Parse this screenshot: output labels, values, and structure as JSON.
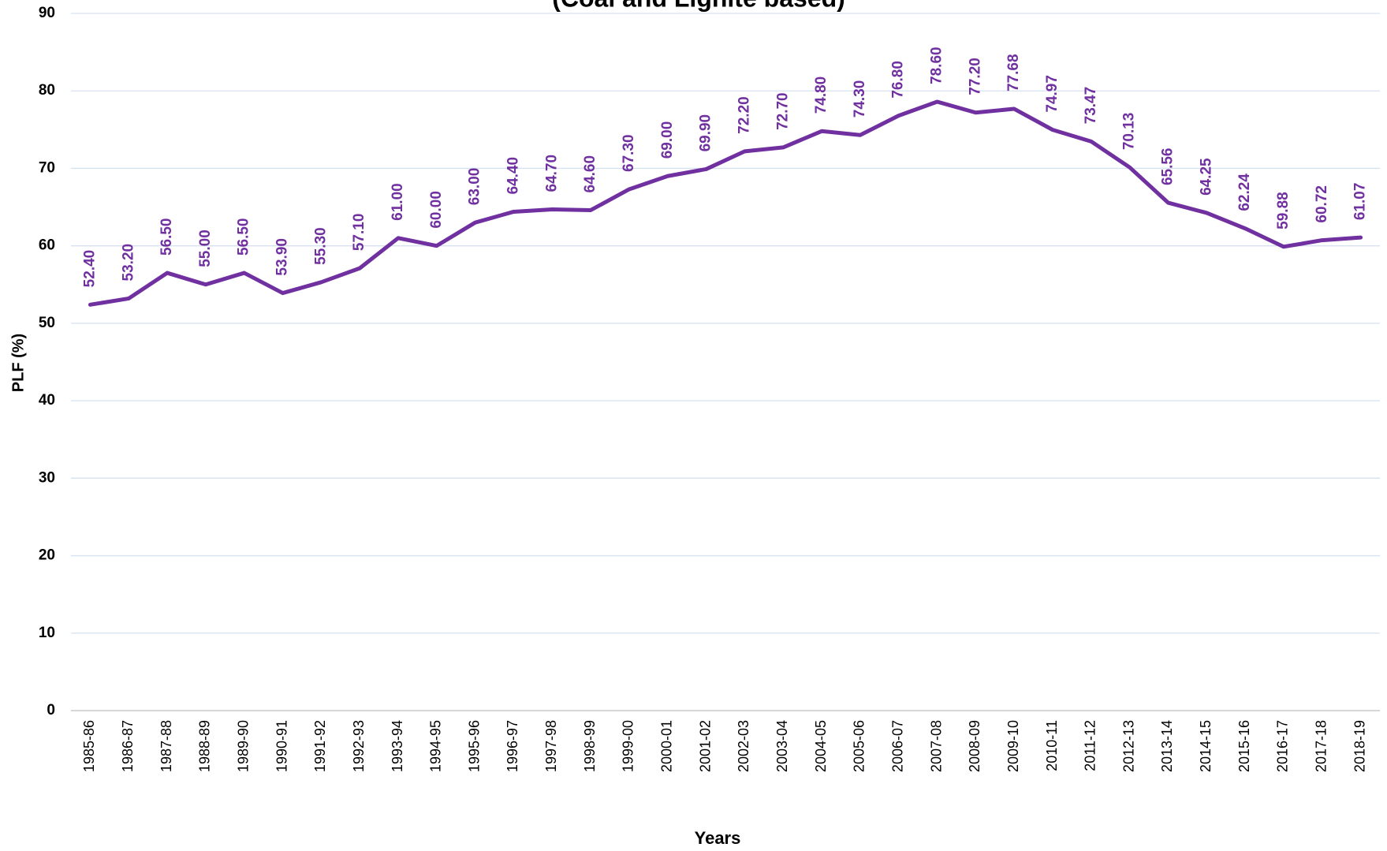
{
  "chart_data": {
    "type": "line",
    "title": "(Coal and Lignite based)",
    "x_label": "Years",
    "y_label": "PLF (%)",
    "categories": [
      "1985-86",
      "1986-87",
      "1987-88",
      "1988-89",
      "1989-90",
      "1990-91",
      "1991-92",
      "1992-93",
      "1993-94",
      "1994-95",
      "1995-96",
      "1996-97",
      "1997-98",
      "1998-99",
      "1999-00",
      "2000-01",
      "2001-02",
      "2002-03",
      "2003-04",
      "2004-05",
      "2005-06",
      "2006-07",
      "2007-08",
      "2008-09",
      "2009-10",
      "2010-11",
      "2011-12",
      "2012-13",
      "2013-14",
      "2014-15",
      "2015-16",
      "2016-17",
      "2017-18",
      "2018-19"
    ],
    "series": [
      {
        "name": "PLF",
        "color": "#7030a0",
        "values": [
          52.4,
          53.2,
          56.5,
          55,
          56.5,
          53.9,
          55.3,
          57.1,
          61,
          60,
          63,
          64.4,
          64.7,
          64.6,
          67.3,
          69,
          69.9,
          72.2,
          72.7,
          74.8,
          74.3,
          76.8,
          78.6,
          77.2,
          77.68,
          74.97,
          73.47,
          70.13,
          65.56,
          64.25,
          62.24,
          59.88,
          60.72,
          61.07
        ],
        "value_labels": [
          "52.40",
          "53.20",
          "56.50",
          "55.00",
          "56.50",
          "53.90",
          "55.30",
          "57.10",
          "61.00",
          "60.00",
          "63.00",
          "64.40",
          "64.70",
          "64.60",
          "67.30",
          "69.00",
          "69.90",
          "72.20",
          "72.70",
          "74.80",
          "74.30",
          "76.80",
          "78.60",
          "77.20",
          "77.68",
          "74.97",
          "73.47",
          "70.13",
          "65.56",
          "64.25",
          "62.24",
          "59.88",
          "60.72",
          "61.07"
        ]
      }
    ],
    "ylim": [
      0,
      90
    ],
    "yticks": [
      0,
      10,
      20,
      30,
      40,
      50,
      60,
      70,
      80,
      90
    ],
    "grid": true
  }
}
